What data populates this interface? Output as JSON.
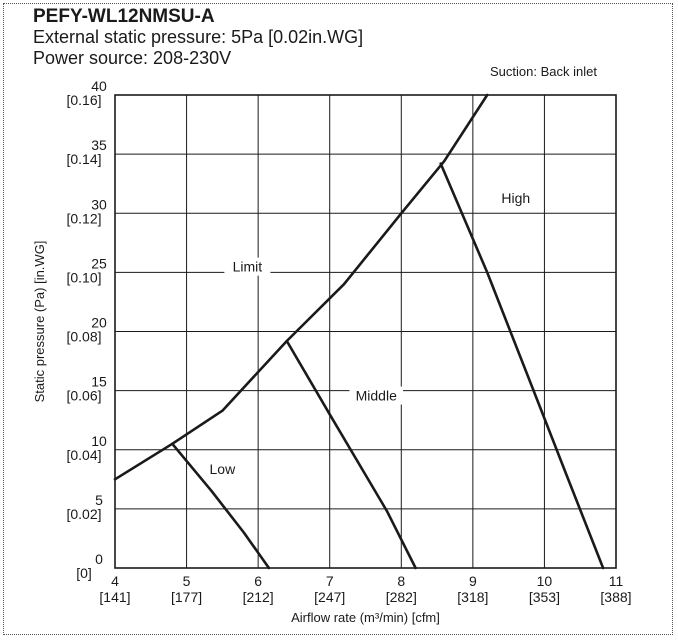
{
  "header": {
    "model": "PEFY-WL12NMSU-A",
    "esp": "External static pressure: 5Pa [0.02in.WG]",
    "power": "Power source: 208-230V",
    "suction": "Suction: Back inlet"
  },
  "chart_data": {
    "type": "line",
    "xlabel": "Airflow rate (m³/min) [cfm]",
    "ylabel": "Static pressure (Pa) [in.WG]",
    "xlim": [
      4,
      11
    ],
    "ylim": [
      0,
      40
    ],
    "grid": true,
    "x_ticks": [
      {
        "value": 4,
        "label": "4",
        "sub": "[141]"
      },
      {
        "value": 5,
        "label": "5",
        "sub": "[177]"
      },
      {
        "value": 6,
        "label": "6",
        "sub": "[212]"
      },
      {
        "value": 7,
        "label": "7",
        "sub": "[247]"
      },
      {
        "value": 8,
        "label": "8",
        "sub": "[282]"
      },
      {
        "value": 9,
        "label": "9",
        "sub": "[318]"
      },
      {
        "value": 10,
        "label": "10",
        "sub": "[353]"
      },
      {
        "value": 11,
        "label": "11",
        "sub": "[388]"
      }
    ],
    "y_ticks": [
      {
        "value": 0,
        "label": "0",
        "sub": "[0]"
      },
      {
        "value": 5,
        "label": "5",
        "sub": "[0.02]"
      },
      {
        "value": 10,
        "label": "10",
        "sub": "[0.04]"
      },
      {
        "value": 15,
        "label": "15",
        "sub": "[0.06]"
      },
      {
        "value": 20,
        "label": "20",
        "sub": "[0.08]"
      },
      {
        "value": 25,
        "label": "25",
        "sub": "[0.10]"
      },
      {
        "value": 30,
        "label": "30",
        "sub": "[0.12]"
      },
      {
        "value": 35,
        "label": "35",
        "sub": "[0.14]"
      },
      {
        "value": 40,
        "label": "40",
        "sub": "[0.16]"
      }
    ],
    "series": [
      {
        "name": "Limit",
        "label_at": [
          5.85,
          25.4
        ],
        "points": [
          [
            4,
            7.5
          ],
          [
            4.8,
            10.5
          ],
          [
            5.5,
            13.3
          ],
          [
            6.4,
            19.2
          ],
          [
            7.2,
            24.0
          ],
          [
            8.0,
            30.0
          ],
          [
            8.6,
            34.4
          ],
          [
            9.2,
            40
          ]
        ]
      },
      {
        "name": "High",
        "label_at": [
          9.6,
          31.2
        ],
        "points": [
          [
            8.55,
            34.2
          ],
          [
            9.2,
            25.0
          ],
          [
            9.9,
            14.2
          ],
          [
            10.3,
            8.0
          ],
          [
            10.82,
            0
          ]
        ]
      },
      {
        "name": "Middle",
        "label_at": [
          7.65,
          14.5
        ],
        "points": [
          [
            6.4,
            19.2
          ],
          [
            7.0,
            13.0
          ],
          [
            7.8,
            4.8
          ],
          [
            8.2,
            0
          ]
        ]
      },
      {
        "name": "Low",
        "label_at": [
          5.5,
          8.3
        ],
        "points": [
          [
            4.8,
            10.5
          ],
          [
            5.35,
            6.5
          ],
          [
            5.8,
            3.0
          ],
          [
            6.15,
            0
          ]
        ]
      }
    ]
  }
}
